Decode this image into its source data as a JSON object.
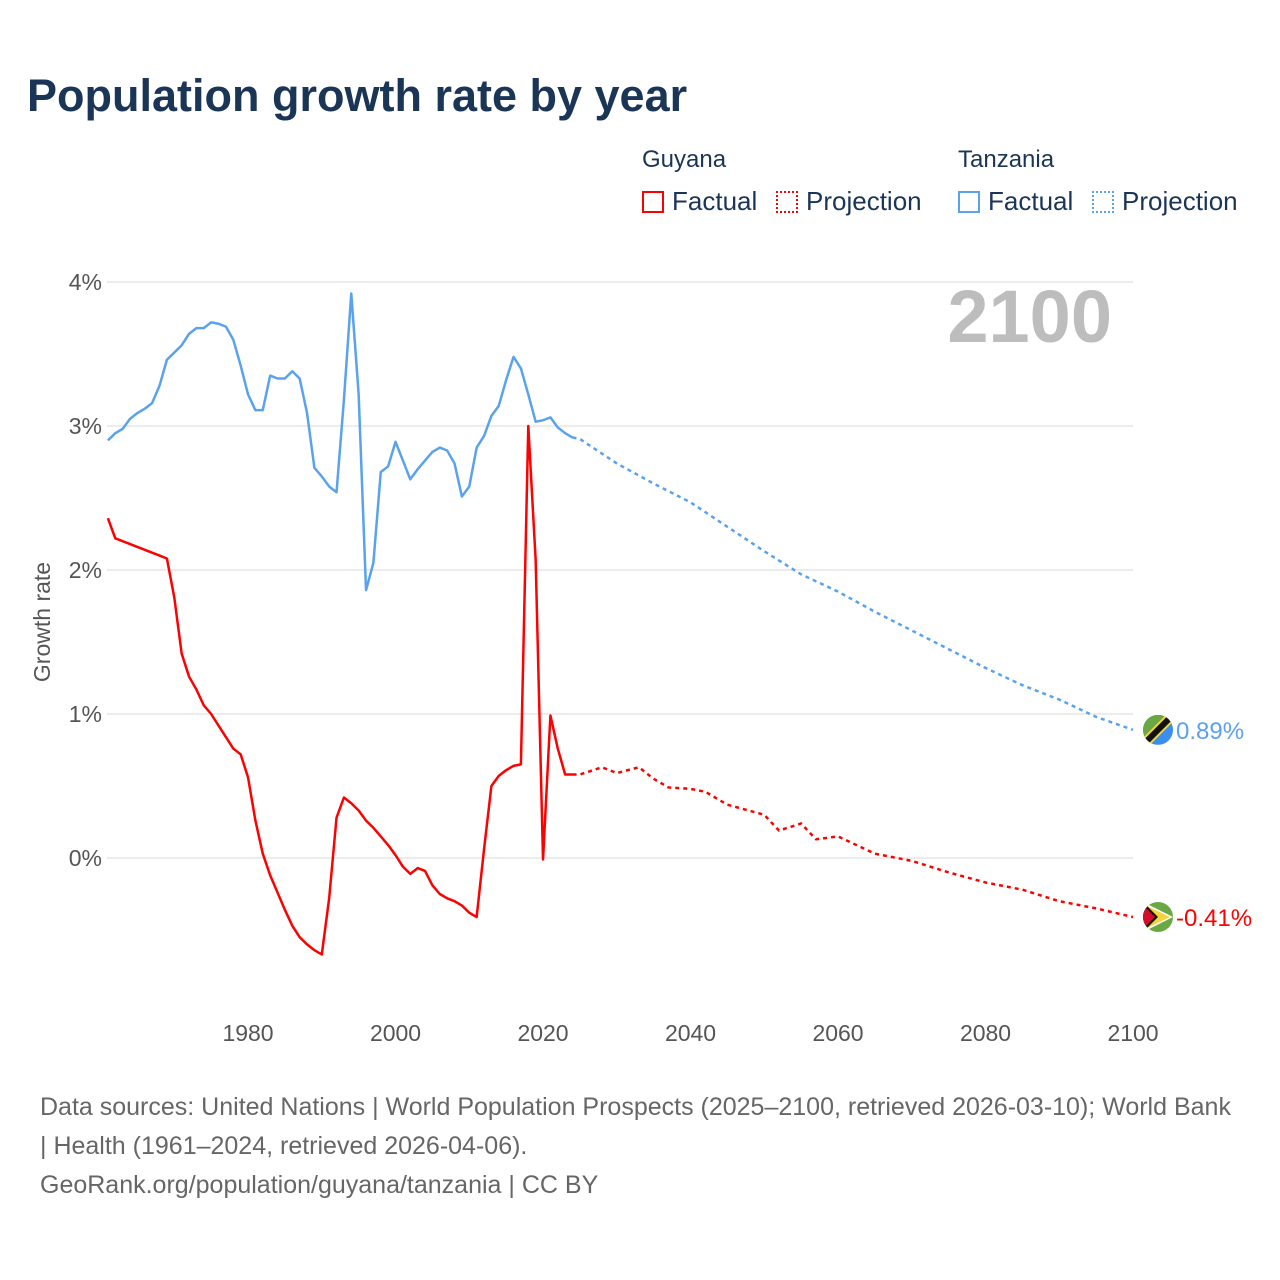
{
  "title": "Population growth rate by year",
  "legend": {
    "groups": [
      {
        "name": "Guyana",
        "items": [
          "Factual",
          "Projection"
        ],
        "color": "#ff0000"
      },
      {
        "name": "Tanzania",
        "items": [
          "Factual",
          "Projection"
        ],
        "color": "#5aa2ee"
      }
    ]
  },
  "year_label": "2100",
  "footer": {
    "line1": "Data sources: United Nations | World Population Prospects (2025–2100, retrieved 2026-03-10); World Bank | Health (1961–2024, retrieved 2026-04-06).",
    "line2": "GeoRank.org/population/guyana/tanzania | CC BY"
  },
  "chart_data": {
    "type": "line",
    "title": "Population growth rate by year",
    "xlabel": "",
    "ylabel": "Growth rate",
    "xlim": [
      1961,
      2100
    ],
    "ylim": [
      -1,
      4.5
    ],
    "xticks": [
      1980,
      2000,
      2020,
      2040,
      2060,
      2080,
      2100
    ],
    "yticks": [
      0,
      1,
      2,
      3,
      4
    ],
    "ytick_labels": [
      "0%",
      "1%",
      "2%",
      "3%",
      "4%"
    ],
    "grid": true,
    "series": [
      {
        "name": "Tanzania Factual",
        "color": "#5aa2ee",
        "dashed": false,
        "x0": 1961,
        "values": [
          2.9,
          2.95,
          2.98,
          3.05,
          3.09,
          3.12,
          3.16,
          3.28,
          3.46,
          3.51,
          3.56,
          3.64,
          3.68,
          3.68,
          3.72,
          3.71,
          3.69,
          3.6,
          3.42,
          3.22,
          3.11,
          3.11,
          3.35,
          3.33,
          3.33,
          3.38,
          3.33,
          3.09,
          2.71,
          2.65,
          2.58,
          2.54,
          3.18,
          3.92,
          3.22,
          1.86,
          2.05,
          2.68,
          2.72,
          2.89,
          2.76,
          2.63,
          2.7,
          2.76,
          2.82,
          2.85,
          2.83,
          2.74,
          2.51,
          2.58,
          2.85,
          2.93,
          3.07,
          3.14,
          3.32,
          3.48,
          3.4,
          3.22,
          3.03,
          3.04,
          3.06,
          2.99,
          2.95,
          2.92
        ]
      },
      {
        "name": "Tanzania Projection",
        "color": "#5aa2ee",
        "dashed": true,
        "x": [
          2024,
          2025,
          2030,
          2035,
          2040,
          2045,
          2050,
          2055,
          2060,
          2065,
          2070,
          2075,
          2080,
          2085,
          2090,
          2095,
          2100
        ],
        "y": [
          2.92,
          2.91,
          2.74,
          2.6,
          2.47,
          2.3,
          2.13,
          1.97,
          1.85,
          1.71,
          1.58,
          1.45,
          1.32,
          1.2,
          1.1,
          0.98,
          0.89
        ]
      },
      {
        "name": "Guyana Factual",
        "color": "#ff0000",
        "dashed": false,
        "x0": 1961,
        "values": [
          2.36,
          2.22,
          2.2,
          2.18,
          2.16,
          2.14,
          2.12,
          2.1,
          2.08,
          1.81,
          1.42,
          1.26,
          1.17,
          1.06,
          1.0,
          0.92,
          0.84,
          0.76,
          0.72,
          0.56,
          0.26,
          0.03,
          -0.12,
          -0.24,
          -0.36,
          -0.47,
          -0.55,
          -0.6,
          -0.64,
          -0.67,
          -0.28,
          0.28,
          0.42,
          0.38,
          0.33,
          0.26,
          0.21,
          0.15,
          0.09,
          0.02,
          -0.06,
          -0.11,
          -0.07,
          -0.09,
          -0.19,
          -0.25,
          -0.28,
          -0.3,
          -0.33,
          -0.38,
          -0.41,
          0.06,
          0.5,
          0.57,
          0.61,
          0.64,
          0.65,
          3.0,
          2.07,
          -0.01,
          0.99,
          0.76,
          0.58,
          0.58
        ]
      },
      {
        "name": "Guyana Projection",
        "color": "#ff0000",
        "dashed": true,
        "x": [
          2024,
          2025,
          2028,
          2030,
          2033,
          2035,
          2037,
          2040,
          2042,
          2045,
          2050,
          2052,
          2055,
          2057,
          2060,
          2065,
          2070,
          2075,
          2080,
          2085,
          2090,
          2095,
          2100
        ],
        "y": [
          0.58,
          0.58,
          0.63,
          0.59,
          0.63,
          0.55,
          0.49,
          0.48,
          0.46,
          0.37,
          0.3,
          0.19,
          0.24,
          0.13,
          0.15,
          0.03,
          -0.02,
          -0.1,
          -0.17,
          -0.22,
          -0.3,
          -0.35,
          -0.41
        ]
      }
    ],
    "end_labels": [
      {
        "country": "Tanzania",
        "value": 0.89,
        "text": "0.89%",
        "color": "#5aa2ee"
      },
      {
        "country": "Guyana",
        "value": -0.41,
        "text": "-0.41%",
        "color": "#ff0000"
      }
    ]
  }
}
